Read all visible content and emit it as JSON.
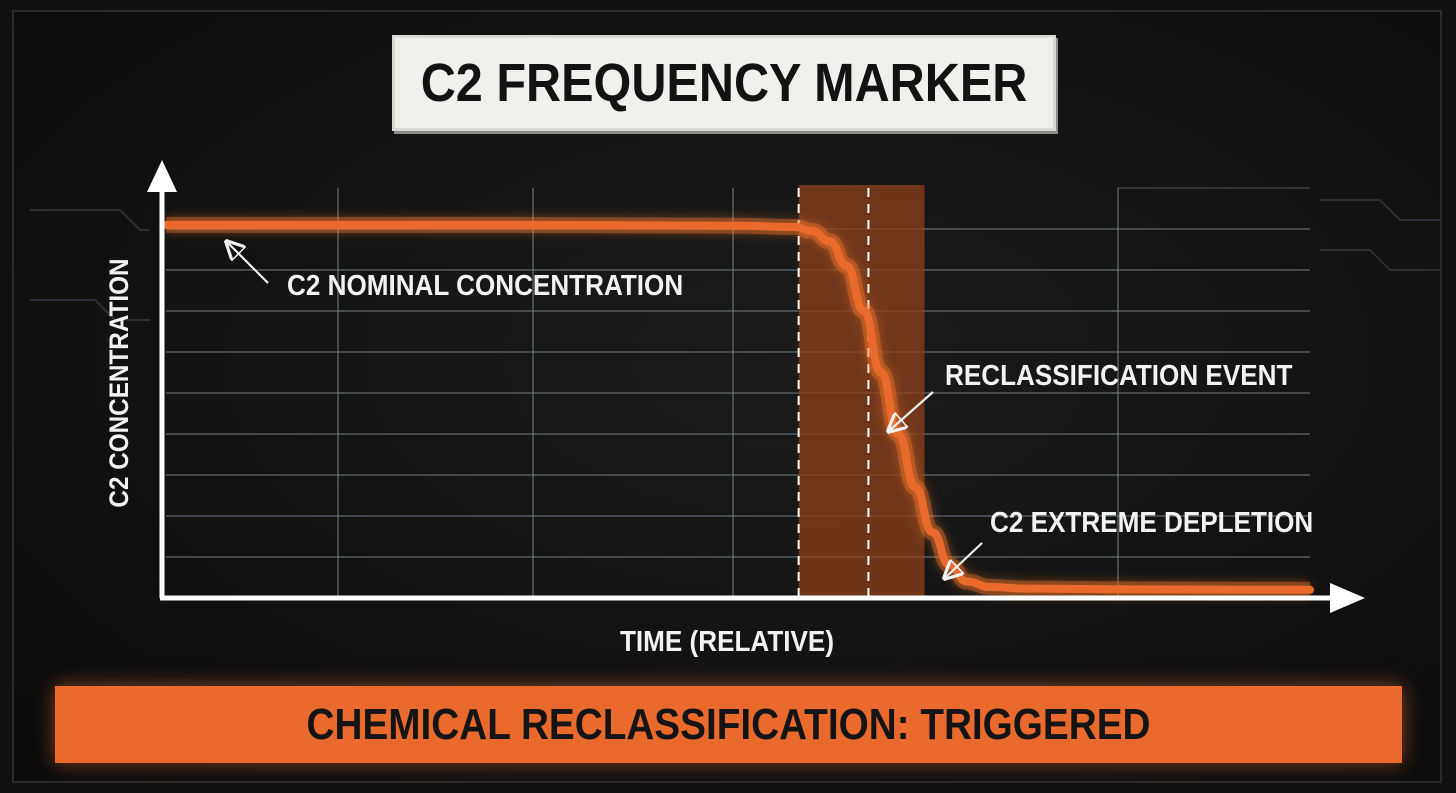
{
  "chart_data": {
    "type": "line",
    "title": "C2 FREQUENCY MARKER",
    "xlabel": "TIME (RELATIVE)",
    "ylabel": "C2 CONCENTRATION",
    "grid": true,
    "xlim": [
      0,
      100
    ],
    "ylim": [
      0,
      100
    ],
    "series": [
      {
        "values_x": [
          0,
          30,
          50,
          55,
          56.5,
          58,
          59.5,
          61,
          62.5,
          64,
          65.5,
          67,
          68.5,
          70,
          72,
          75,
          85,
          100
        ],
        "values_y": [
          91,
          91,
          90.8,
          90.5,
          89.5,
          87,
          81,
          70,
          55,
          40,
          27,
          16,
          8,
          4,
          2.7,
          2.3,
          2.1,
          2.0
        ]
      }
    ],
    "highlight_region": {
      "x_start": 55.3,
      "x_end": 66.3,
      "markers": [
        55.3,
        61.4
      ]
    },
    "annotations": [
      {
        "text": "C2 NOMINAL CONCENTRATION",
        "x": 5.5,
        "y": 90
      },
      {
        "text": "RECLASSIFICATION EVENT",
        "x": 63.8,
        "y": 43
      },
      {
        "text": "C2 EXTREME DEPLETION",
        "x": 69.5,
        "y": 6
      }
    ]
  },
  "status": {
    "text": "CHEMICAL RECLASSIFICATION: TRIGGERED"
  },
  "colors": {
    "accent": "#e96a2c",
    "line_glow": "#ff7a2e",
    "background": "#111111",
    "grid": "#6f7a7d",
    "axis": "#ffffff",
    "banner": "#f1f0ec"
  }
}
